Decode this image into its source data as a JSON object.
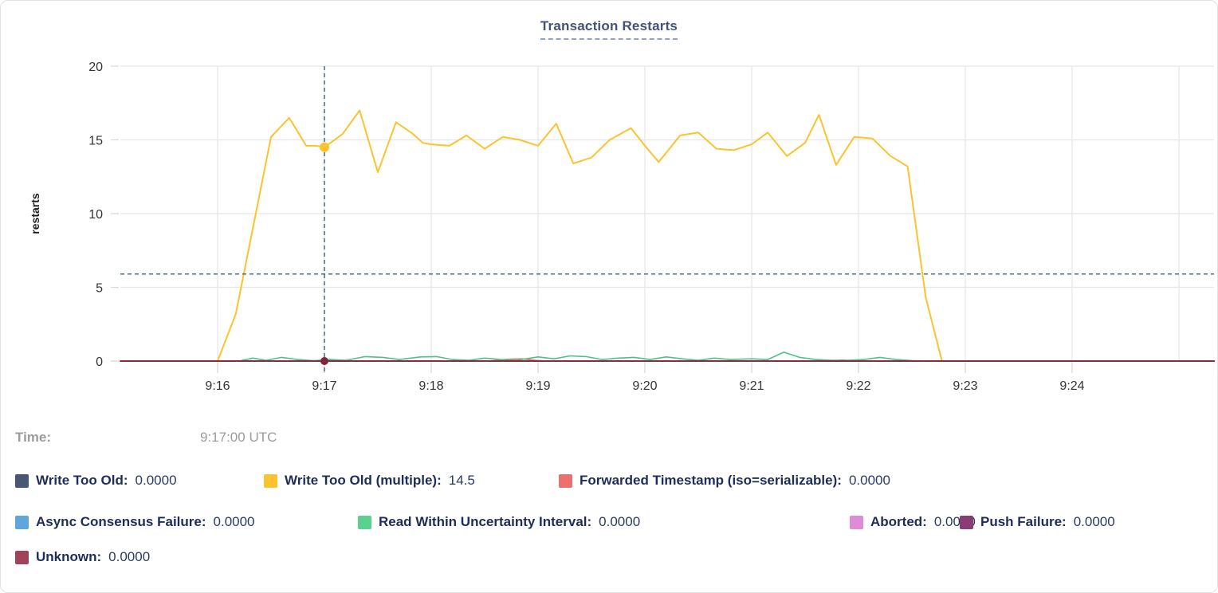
{
  "time_row": {
    "label": "Time:",
    "value": "9:17:00 UTC"
  },
  "legend": {
    "rows": [
      [
        {
          "label": "Write Too Old:",
          "value": "0.0000",
          "color": "#475872"
        },
        {
          "label": "Write Too Old (multiple):",
          "value": "14.5",
          "color": "#fcc32f"
        },
        {
          "label": "Forwarded Timestamp (iso=serializable):",
          "value": "0.0000",
          "color": "#ee6f6c"
        }
      ],
      [
        {
          "label": "Async Consensus Failure:",
          "value": "0.0000",
          "color": "#61a5de"
        },
        {
          "label": "Read Within Uncertainty Interval:",
          "value": "0.0000",
          "color": "#5bd18f"
        },
        {
          "label": "Aborted:",
          "value": "0.0000",
          "color": "#de8cd3"
        },
        {
          "label": "Push Failure:",
          "value": "0.0000",
          "color": "#8a3d72"
        }
      ],
      [
        {
          "label": "Unknown:",
          "value": "0.0000",
          "color": "#a24459"
        }
      ]
    ]
  },
  "chart_data": {
    "type": "line",
    "title": "Transaction Restarts",
    "ylabel": "restarts",
    "ylim": [
      0,
      20
    ],
    "yticks": [
      0,
      5,
      10,
      15,
      20
    ],
    "xticks": [
      {
        "minute": 16,
        "label": "9:16"
      },
      {
        "minute": 17,
        "label": "9:17"
      },
      {
        "minute": 18,
        "label": "9:18"
      },
      {
        "minute": 19,
        "label": "9:19"
      },
      {
        "minute": 20,
        "label": "9:20"
      },
      {
        "minute": 21,
        "label": "9:21"
      },
      {
        "minute": 22,
        "label": "9:22"
      },
      {
        "minute": 23,
        "label": "9:23"
      },
      {
        "minute": 24,
        "label": "9:24"
      },
      {
        "minute": 25,
        "label": ""
      }
    ],
    "x_range_minutes": [
      15.09,
      25.33
    ],
    "grid": true,
    "legend_position": "bottom",
    "hover": {
      "time_minute": 17,
      "time_label": "9:17:00 UTC",
      "crosshair_value": 5.9,
      "dots": [
        {
          "series": "Write Too Old (multiple):",
          "value": 14.5,
          "color": "#fcc32f",
          "r": 6
        },
        {
          "series": "Unknown:",
          "value": 0,
          "color": "#7e2739",
          "r": 5
        }
      ]
    },
    "series": [
      {
        "name": "Write Too Old:",
        "color": "#475872",
        "width": 1.4,
        "points": [
          [
            15.09,
            0
          ],
          [
            25.33,
            0
          ]
        ]
      },
      {
        "name": "Async Consensus Failure:",
        "color": "#61a5de",
        "width": 1.4,
        "points": [
          [
            15.09,
            0
          ],
          [
            25.33,
            0
          ]
        ]
      },
      {
        "name": "Aborted:",
        "color": "#de8cd3",
        "width": 1.4,
        "points": [
          [
            15.09,
            0
          ],
          [
            25.33,
            0
          ]
        ]
      },
      {
        "name": "Push Failure:",
        "color": "#8a3d72",
        "width": 1.4,
        "points": [
          [
            15.09,
            0
          ],
          [
            25.33,
            0
          ]
        ]
      },
      {
        "name": "Forwarded Timestamp (iso=serializable):",
        "color": "#ee6f6c",
        "width": 1.6,
        "points": [
          [
            15.09,
            0
          ],
          [
            18.55,
            0
          ],
          [
            18.7,
            0.12
          ],
          [
            18.85,
            0.15
          ],
          [
            19.0,
            0.03
          ],
          [
            19.1,
            0
          ],
          [
            21.75,
            0
          ],
          [
            21.85,
            0.08
          ],
          [
            21.95,
            0
          ],
          [
            25.33,
            0
          ]
        ]
      },
      {
        "name": "Read Within Uncertainty Interval:",
        "color": "#4cc286",
        "width": 1.6,
        "points": [
          [
            15.09,
            0
          ],
          [
            16.2,
            0
          ],
          [
            16.33,
            0.2
          ],
          [
            16.45,
            0.05
          ],
          [
            16.6,
            0.25
          ],
          [
            16.75,
            0.1
          ],
          [
            16.9,
            0.02
          ],
          [
            17.05,
            0.1
          ],
          [
            17.2,
            0.05
          ],
          [
            17.38,
            0.3
          ],
          [
            17.55,
            0.25
          ],
          [
            17.7,
            0.1
          ],
          [
            17.9,
            0.28
          ],
          [
            18.05,
            0.3
          ],
          [
            18.2,
            0.1
          ],
          [
            18.35,
            0.05
          ],
          [
            18.5,
            0.2
          ],
          [
            18.65,
            0.1
          ],
          [
            18.8,
            0.05
          ],
          [
            19.0,
            0.28
          ],
          [
            19.15,
            0.15
          ],
          [
            19.3,
            0.35
          ],
          [
            19.45,
            0.3
          ],
          [
            19.6,
            0.1
          ],
          [
            19.75,
            0.2
          ],
          [
            19.9,
            0.25
          ],
          [
            20.05,
            0.1
          ],
          [
            20.2,
            0.28
          ],
          [
            20.35,
            0.15
          ],
          [
            20.5,
            0.05
          ],
          [
            20.65,
            0.2
          ],
          [
            20.8,
            0.1
          ],
          [
            21.0,
            0.15
          ],
          [
            21.15,
            0.1
          ],
          [
            21.3,
            0.6
          ],
          [
            21.45,
            0.25
          ],
          [
            21.6,
            0.1
          ],
          [
            21.75,
            0.05
          ],
          [
            21.9,
            0.05
          ],
          [
            22.05,
            0.1
          ],
          [
            22.2,
            0.25
          ],
          [
            22.35,
            0.1
          ],
          [
            22.5,
            0.03
          ],
          [
            22.65,
            0
          ],
          [
            25.33,
            0
          ]
        ]
      },
      {
        "name": "Write Too Old (multiple):",
        "color": "#fcc32f",
        "width": 2,
        "points": [
          [
            16.0,
            0
          ],
          [
            16.17,
            3.2
          ],
          [
            16.33,
            9.0
          ],
          [
            16.5,
            15.2
          ],
          [
            16.67,
            16.5
          ],
          [
            16.83,
            14.6
          ],
          [
            16.92,
            14.6
          ],
          [
            17.0,
            14.5
          ],
          [
            17.17,
            15.4
          ],
          [
            17.33,
            17.0
          ],
          [
            17.5,
            12.8
          ],
          [
            17.67,
            16.2
          ],
          [
            17.83,
            15.4
          ],
          [
            17.92,
            14.8
          ],
          [
            18.0,
            14.7
          ],
          [
            18.17,
            14.6
          ],
          [
            18.33,
            15.3
          ],
          [
            18.5,
            14.4
          ],
          [
            18.67,
            15.2
          ],
          [
            18.83,
            15.0
          ],
          [
            19.0,
            14.6
          ],
          [
            19.17,
            16.1
          ],
          [
            19.33,
            13.4
          ],
          [
            19.5,
            13.8
          ],
          [
            19.67,
            15.0
          ],
          [
            19.87,
            15.8
          ],
          [
            20.0,
            14.6
          ],
          [
            20.13,
            13.5
          ],
          [
            20.33,
            15.3
          ],
          [
            20.5,
            15.5
          ],
          [
            20.67,
            14.4
          ],
          [
            20.83,
            14.3
          ],
          [
            21.0,
            14.7
          ],
          [
            21.15,
            15.5
          ],
          [
            21.33,
            13.9
          ],
          [
            21.5,
            14.8
          ],
          [
            21.63,
            16.7
          ],
          [
            21.79,
            13.3
          ],
          [
            21.96,
            15.2
          ],
          [
            22.13,
            15.1
          ],
          [
            22.3,
            13.9
          ],
          [
            22.46,
            13.2
          ],
          [
            22.63,
            4.3
          ],
          [
            22.78,
            0.05
          ]
        ]
      },
      {
        "name": "Unknown:",
        "color": "#8f2838",
        "width": 2,
        "points": [
          [
            15.09,
            0
          ],
          [
            25.33,
            0
          ]
        ]
      }
    ]
  },
  "colors": {
    "grid": "#e7e7e7",
    "tick_dash": "#d9d9d9",
    "tick_text": "#333333",
    "crosshair": "#3e6077",
    "title": "#42527a",
    "title_underline": "#8ea3c6",
    "legend_label": "#1e2c5a",
    "time_text": "#9b9b9b"
  }
}
